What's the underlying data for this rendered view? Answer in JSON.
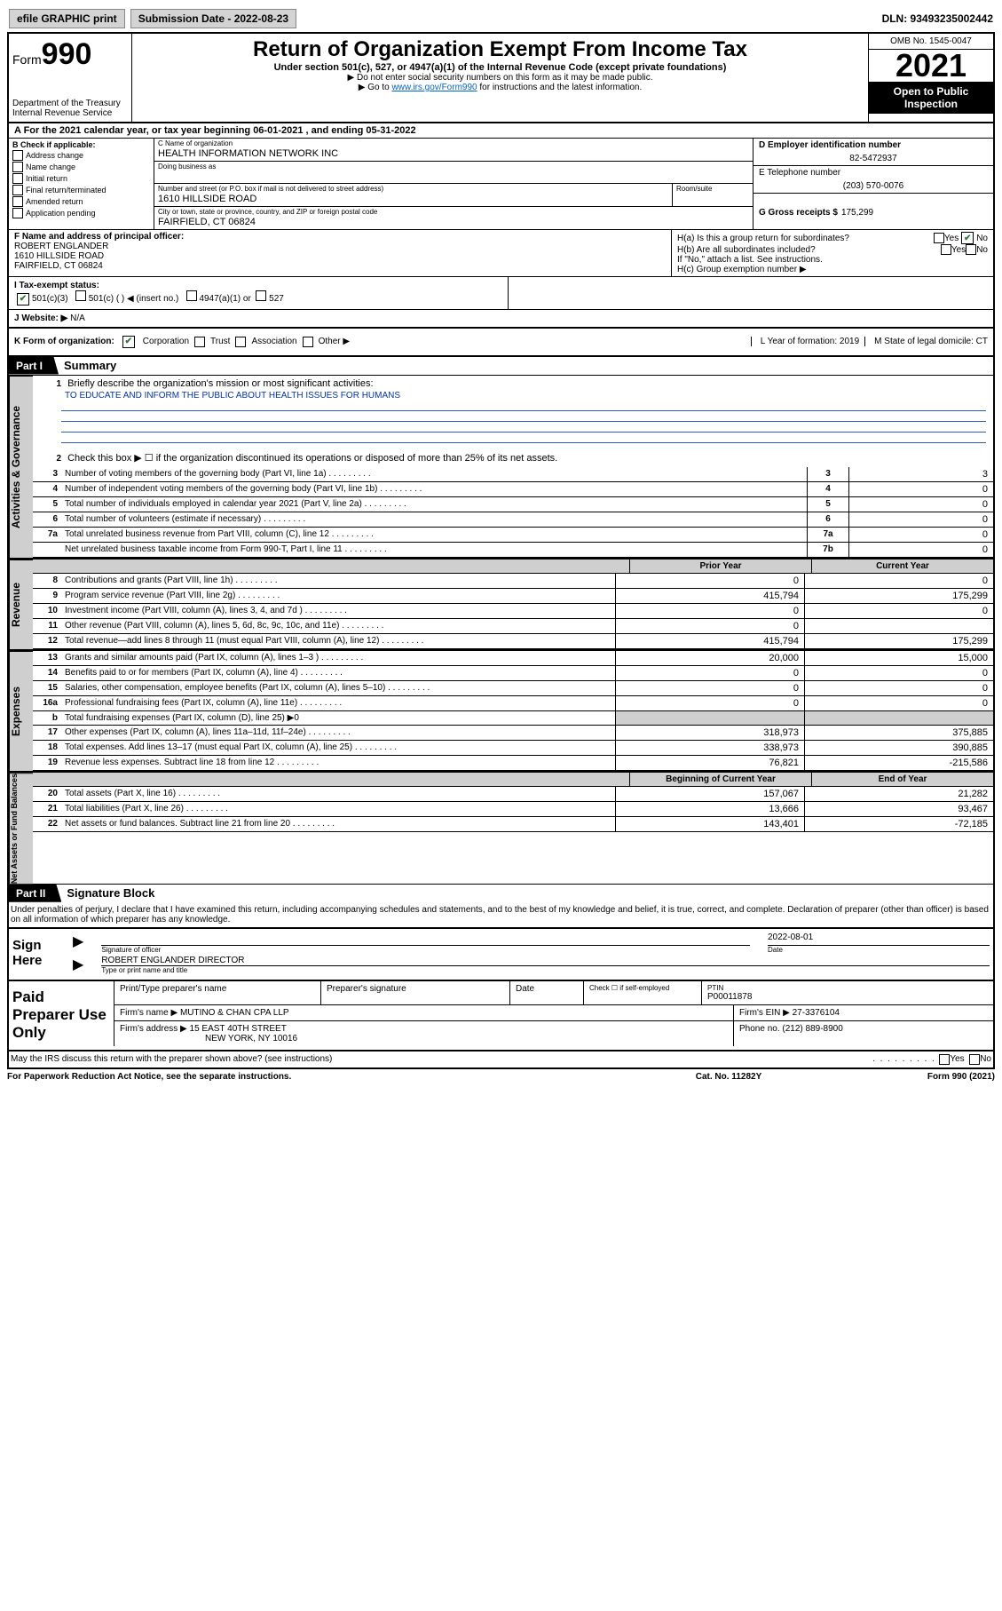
{
  "top": {
    "efile": "efile GRAPHIC print",
    "submission": "Submission Date - 2022-08-23",
    "dln": "DLN: 93493235002442"
  },
  "header": {
    "form_prefix": "Form",
    "form_num": "990",
    "title": "Return of Organization Exempt From Income Tax",
    "subtitle": "Under section 501(c), 527, or 4947(a)(1) of the Internal Revenue Code (except private foundations)",
    "note1": "▶ Do not enter social security numbers on this form as it may be made public.",
    "note2_pre": "▶ Go to ",
    "note2_link": "www.irs.gov/Form990",
    "note2_post": " for instructions and the latest information.",
    "dept": "Department of the Treasury",
    "irs": "Internal Revenue Service",
    "omb": "OMB No. 1545-0047",
    "year": "2021",
    "open": "Open to Public Inspection"
  },
  "row_a": "A For the 2021 calendar year, or tax year beginning 06-01-2021   , and ending 05-31-2022",
  "col_b": {
    "title": "B Check if applicable:",
    "items": [
      "Address change",
      "Name change",
      "Initial return",
      "Final return/terminated",
      "Amended return",
      "Application pending"
    ]
  },
  "col_c": {
    "name_label": "C Name of organization",
    "name": "HEALTH INFORMATION NETWORK INC",
    "dba_label": "Doing business as",
    "addr_label": "Number and street (or P.O. box if mail is not delivered to street address)",
    "room_label": "Room/suite",
    "addr": "1610 HILLSIDE ROAD",
    "city_label": "City or town, state or province, country, and ZIP or foreign postal code",
    "city": "FAIRFIELD, CT  06824"
  },
  "col_de": {
    "d_label": "D Employer identification number",
    "d_val": "82-5472937",
    "e_label": "E Telephone number",
    "e_val": "(203) 570-0076",
    "g_label": "G Gross receipts $",
    "g_val": "175,299"
  },
  "f": {
    "label": "F Name and address of principal officer:",
    "name": "ROBERT ENGLANDER",
    "addr1": "1610 HILLSIDE ROAD",
    "addr2": "FAIRFIELD, CT  06824"
  },
  "h": {
    "a": "H(a)  Is this a group return for subordinates?",
    "b": "H(b)  Are all subordinates included?",
    "note": "If \"No,\" attach a list. See instructions.",
    "c": "H(c)  Group exemption number ▶",
    "yes": "Yes",
    "no": "No"
  },
  "i": {
    "label": "I  Tax-exempt status:",
    "c3": "501(c)(3)",
    "c": "501(c) (   ) ◀ (insert no.)",
    "a1": "4947(a)(1) or",
    "527": "527"
  },
  "j": {
    "label": "J  Website: ▶",
    "val": "N/A"
  },
  "k": {
    "label": "K Form of organization:",
    "corp": "Corporation",
    "trust": "Trust",
    "assoc": "Association",
    "other": "Other ▶",
    "l": "L Year of formation: 2019",
    "m": "M State of legal domicile: CT"
  },
  "part1": {
    "tab": "Part I",
    "title": "Summary"
  },
  "side": {
    "ag": "Activities & Governance",
    "rev": "Revenue",
    "exp": "Expenses",
    "nab": "Net Assets or Fund Balances"
  },
  "q1": {
    "num": "1",
    "label": "Briefly describe the organization's mission or most significant activities:",
    "text": "TO EDUCATE AND INFORM THE PUBLIC ABOUT HEALTH ISSUES FOR HUMANS"
  },
  "q2": {
    "num": "2",
    "label": "Check this box ▶ ☐  if the organization discontinued its operations or disposed of more than 25% of its net assets."
  },
  "lines_ag": [
    {
      "n": "3",
      "d": "Number of voting members of the governing body (Part VI, line 1a)",
      "box": "3",
      "v": "3"
    },
    {
      "n": "4",
      "d": "Number of independent voting members of the governing body (Part VI, line 1b)",
      "box": "4",
      "v": "0"
    },
    {
      "n": "5",
      "d": "Total number of individuals employed in calendar year 2021 (Part V, line 2a)",
      "box": "5",
      "v": "0"
    },
    {
      "n": "6",
      "d": "Total number of volunteers (estimate if necessary)",
      "box": "6",
      "v": "0"
    },
    {
      "n": "7a",
      "d": "Total unrelated business revenue from Part VIII, column (C), line 12",
      "box": "7a",
      "v": "0"
    },
    {
      "n": "",
      "d": "Net unrelated business taxable income from Form 990-T, Part I, line 11",
      "box": "7b",
      "v": "0"
    }
  ],
  "col_hdr": {
    "prior": "Prior Year",
    "current": "Current Year",
    "begin": "Beginning of Current Year",
    "end": "End of Year"
  },
  "lines_rev": [
    {
      "n": "8",
      "d": "Contributions and grants (Part VIII, line 1h)",
      "p": "0",
      "c": "0"
    },
    {
      "n": "9",
      "d": "Program service revenue (Part VIII, line 2g)",
      "p": "415,794",
      "c": "175,299"
    },
    {
      "n": "10",
      "d": "Investment income (Part VIII, column (A), lines 3, 4, and 7d )",
      "p": "0",
      "c": "0"
    },
    {
      "n": "11",
      "d": "Other revenue (Part VIII, column (A), lines 5, 6d, 8c, 9c, 10c, and 11e)",
      "p": "0",
      "c": ""
    },
    {
      "n": "12",
      "d": "Total revenue—add lines 8 through 11 (must equal Part VIII, column (A), line 12)",
      "p": "415,794",
      "c": "175,299"
    }
  ],
  "lines_exp": [
    {
      "n": "13",
      "d": "Grants and similar amounts paid (Part IX, column (A), lines 1–3 )",
      "p": "20,000",
      "c": "15,000"
    },
    {
      "n": "14",
      "d": "Benefits paid to or for members (Part IX, column (A), line 4)",
      "p": "0",
      "c": "0"
    },
    {
      "n": "15",
      "d": "Salaries, other compensation, employee benefits (Part IX, column (A), lines 5–10)",
      "p": "0",
      "c": "0"
    },
    {
      "n": "16a",
      "d": "Professional fundraising fees (Part IX, column (A), line 11e)",
      "p": "0",
      "c": "0"
    },
    {
      "n": "b",
      "d": "Total fundraising expenses (Part IX, column (D), line 25) ▶0",
      "p": "",
      "c": "",
      "shade": true
    },
    {
      "n": "17",
      "d": "Other expenses (Part IX, column (A), lines 11a–11d, 11f–24e)",
      "p": "318,973",
      "c": "375,885"
    },
    {
      "n": "18",
      "d": "Total expenses. Add lines 13–17 (must equal Part IX, column (A), line 25)",
      "p": "338,973",
      "c": "390,885"
    },
    {
      "n": "19",
      "d": "Revenue less expenses. Subtract line 18 from line 12",
      "p": "76,821",
      "c": "-215,586"
    }
  ],
  "lines_nab": [
    {
      "n": "20",
      "d": "Total assets (Part X, line 16)",
      "p": "157,067",
      "c": "21,282"
    },
    {
      "n": "21",
      "d": "Total liabilities (Part X, line 26)",
      "p": "13,666",
      "c": "93,467"
    },
    {
      "n": "22",
      "d": "Net assets or fund balances. Subtract line 21 from line 20",
      "p": "143,401",
      "c": "-72,185"
    }
  ],
  "part2": {
    "tab": "Part II",
    "title": "Signature Block"
  },
  "penalties": "Under penalties of perjury, I declare that I have examined this return, including accompanying schedules and statements, and to the best of my knowledge and belief, it is true, correct, and complete. Declaration of preparer (other than officer) is based on all information of which preparer has any knowledge.",
  "sign": {
    "label": "Sign Here",
    "sig_officer": "Signature of officer",
    "date_label": "Date",
    "date_val": "2022-08-01",
    "name": "ROBERT ENGLANDER  DIRECTOR",
    "name_label": "Type or print name and title"
  },
  "paid": {
    "label": "Paid Preparer Use Only",
    "c1": "Print/Type preparer's name",
    "c2": "Preparer's signature",
    "c3": "Date",
    "c4_a": "Check ☐ if self-employed",
    "c4_b": "PTIN",
    "c4_c": "P00011878",
    "firm_name_label": "Firm's name    ▶",
    "firm_name": "MUTINO & CHAN CPA LLP",
    "firm_ein_label": "Firm's EIN ▶",
    "firm_ein": "27-3376104",
    "firm_addr_label": "Firm's address ▶",
    "firm_addr1": "15 EAST 40TH STREET",
    "firm_addr2": "NEW YORK, NY  10016",
    "phone_label": "Phone no.",
    "phone": "(212) 889-8900"
  },
  "may_irs": "May the IRS discuss this return with the preparer shown above? (see instructions)",
  "footer": {
    "left": "For Paperwork Reduction Act Notice, see the separate instructions.",
    "mid": "Cat. No. 11282Y",
    "right": "Form 990 (2021)"
  }
}
